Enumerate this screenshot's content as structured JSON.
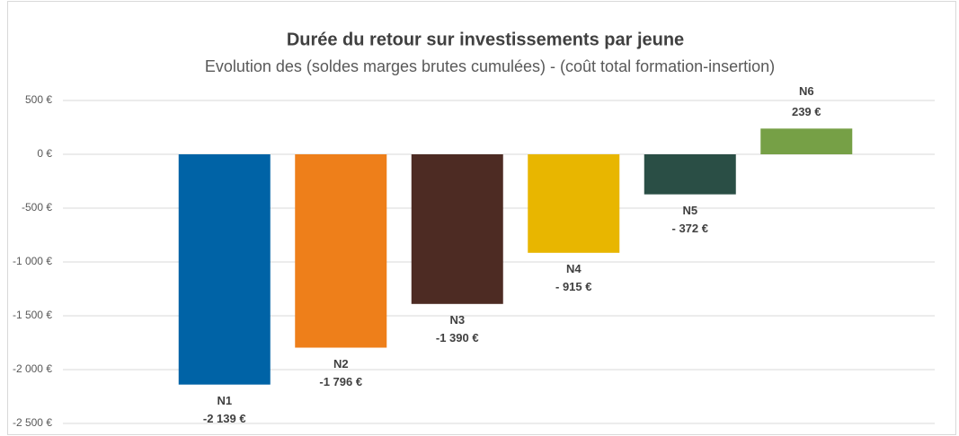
{
  "chart_data": {
    "type": "bar",
    "title": "Durée du retour sur investissements par jeune",
    "subtitle": "Evolution des (soldes marges brutes cumulées) - (coût total formation-insertion)",
    "categories": [
      "N1",
      "N2",
      "N3",
      "N4",
      "N5",
      "N6"
    ],
    "values": [
      -2139,
      -1796,
      -1390,
      -915,
      -372,
      239
    ],
    "value_labels": [
      "-2 139 €",
      "-1 796 €",
      "-1 390 €",
      "- 915 €",
      "- 372 €",
      "239 €"
    ],
    "colors": [
      "#0063a6",
      "#ee7f1a",
      "#4d2b23",
      "#e8b600",
      "#2a4e45",
      "#76a046"
    ],
    "ylim": [
      -2500,
      500
    ],
    "yticks": [
      {
        "value": 500,
        "label": "500 €"
      },
      {
        "value": 0,
        "label": "0 €"
      },
      {
        "value": -500,
        "label": "-500 €"
      },
      {
        "value": -1000,
        "label": "-1 000 €"
      },
      {
        "value": -1500,
        "label": "-1 500 €"
      },
      {
        "value": -2000,
        "label": "-2 000 €"
      },
      {
        "value": -2500,
        "label": "-2 500 €"
      }
    ],
    "grid": true
  }
}
